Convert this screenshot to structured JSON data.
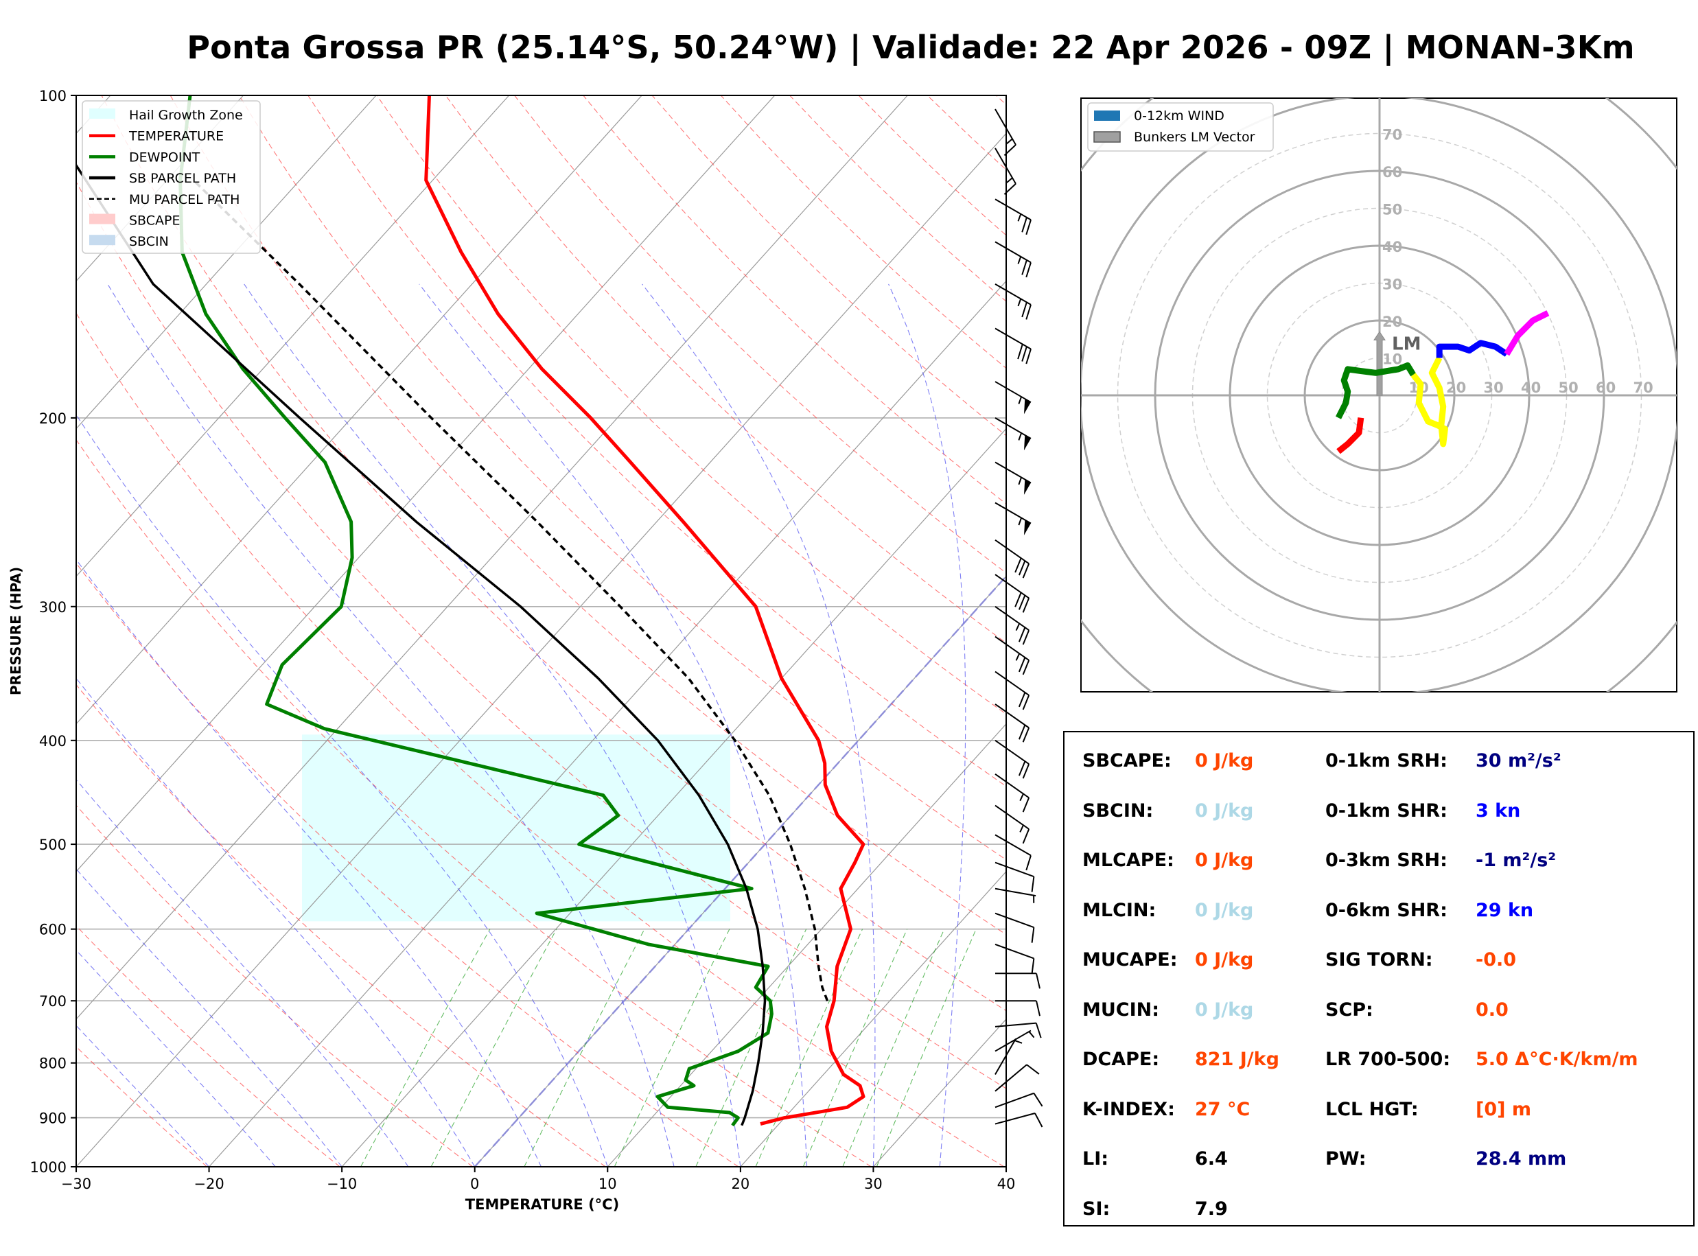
{
  "title": "Ponta Grossa PR (25.14°S, 50.24°W) | Validade: 22 Apr 2026 - 09Z | MONAN-3Km",
  "chart_data": [
    {
      "type": "skew-t",
      "xlabel": "TEMPERATURE (°C)",
      "ylabel": "PRESSURE (HPA)",
      "xlim": [
        -30,
        40
      ],
      "ylim": [
        1000,
        100
      ],
      "log_scale_y": true,
      "x_ticks": [
        "−30",
        "−20",
        "−10",
        "0",
        "10",
        "20",
        "30",
        "40"
      ],
      "y_ticks": [
        "100",
        "200",
        "300",
        "400",
        "500",
        "600",
        "700",
        "800",
        "900",
        "1000"
      ],
      "grid": true,
      "legend_position": "top-left",
      "legend": [
        {
          "label": "Hail Growth Zone",
          "color": "#e0ffff",
          "kind": "patch"
        },
        {
          "label": "TEMPERATURE",
          "color": "#ff0000",
          "kind": "line"
        },
        {
          "label": "DEWPOINT",
          "color": "#008000",
          "kind": "line"
        },
        {
          "label": "SB PARCEL PATH",
          "color": "#000000",
          "kind": "line"
        },
        {
          "label": "MU PARCEL PATH",
          "color": "#000000",
          "kind": "dashed"
        },
        {
          "label": "SBCAPE",
          "color": "#ffcccc",
          "kind": "patch"
        },
        {
          "label": "SBCIN",
          "color": "#c6dbef",
          "kind": "patch"
        }
      ],
      "hail_growth_zone_hpa": [
        590,
        395
      ],
      "series": [
        {
          "name": "TEMPERATURE",
          "color": "#ff0000",
          "points": [
            [
              912,
              18.6
            ],
            [
              900,
              20.0
            ],
            [
              880,
              24.0
            ],
            [
              860,
              24.5
            ],
            [
              840,
              23.5
            ],
            [
              820,
              21.5
            ],
            [
              780,
              19.0
            ],
            [
              740,
              17.0
            ],
            [
              700,
              15.8
            ],
            [
              650,
              13.7
            ],
            [
              600,
              12.2
            ],
            [
              550,
              8.7
            ],
            [
              520,
              8.0
            ],
            [
              500,
              7.4
            ],
            [
              470,
              3.5
            ],
            [
              440,
              0.5
            ],
            [
              420,
              -1.0
            ],
            [
              400,
              -3.0
            ],
            [
              350,
              -10.0
            ],
            [
              300,
              -16.8
            ],
            [
              250,
              -28.0
            ],
            [
              220,
              -36.0
            ],
            [
              200,
              -42.0
            ],
            [
              180,
              -49.0
            ],
            [
              160,
              -56.0
            ],
            [
              140,
              -63.0
            ],
            [
              120,
              -70.5
            ],
            [
              100,
              -76.0
            ]
          ]
        },
        {
          "name": "DEWPOINT",
          "color": "#008000",
          "points": [
            [
              915,
              16.6
            ],
            [
              900,
              16.5
            ],
            [
              890,
              15.5
            ],
            [
              880,
              10.5
            ],
            [
              860,
              9.0
            ],
            [
              840,
              11.0
            ],
            [
              830,
              10.0
            ],
            [
              810,
              9.5
            ],
            [
              780,
              12.0
            ],
            [
              750,
              13.0
            ],
            [
              720,
              12.0
            ],
            [
              700,
              11.0
            ],
            [
              680,
              9.0
            ],
            [
              650,
              8.5
            ],
            [
              620,
              -2.0
            ],
            [
              580,
              -12.5
            ],
            [
              550,
              2.0
            ],
            [
              500,
              -14.0
            ],
            [
              470,
              -13.0
            ],
            [
              450,
              -15.5
            ],
            [
              390,
              -41.0
            ],
            [
              370,
              -47.0
            ],
            [
              340,
              -48.5
            ],
            [
              300,
              -48.0
            ],
            [
              270,
              -50.5
            ],
            [
              250,
              -53.0
            ],
            [
              220,
              -59.0
            ],
            [
              200,
              -65.0
            ],
            [
              180,
              -71.5
            ],
            [
              160,
              -78.0
            ],
            [
              140,
              -84.0
            ],
            [
              120,
              -89.0
            ],
            [
              100,
              -94.0
            ]
          ]
        },
        {
          "name": "SB PARCEL PATH",
          "color": "#000000",
          "dash": false,
          "points": [
            [
              915,
              17.3
            ],
            [
              900,
              17.0
            ],
            [
              850,
              15.8
            ],
            [
              800,
              14.3
            ],
            [
              750,
              12.6
            ],
            [
              700,
              10.6
            ],
            [
              650,
              8.1
            ],
            [
              600,
              5.2
            ],
            [
              550,
              1.6
            ],
            [
              500,
              -2.8
            ],
            [
              450,
              -8.3
            ],
            [
              400,
              -15.1
            ],
            [
              350,
              -23.8
            ],
            [
              300,
              -34.5
            ],
            [
              250,
              -48.1
            ],
            [
              200,
              -63.9
            ],
            [
              150,
              -84.0
            ],
            [
              100,
              -106.0
            ]
          ]
        },
        {
          "name": "MU PARCEL PATH",
          "color": "#000000",
          "dash": true,
          "points": [
            [
              700,
              15.3
            ],
            [
              680,
              14.0
            ],
            [
              650,
              12.3
            ],
            [
              600,
              9.5
            ],
            [
              550,
              6.0
            ],
            [
              500,
              1.9
            ],
            [
              450,
              -3.0
            ],
            [
              400,
              -9.3
            ],
            [
              350,
              -17.0
            ],
            [
              300,
              -27.0
            ],
            [
              250,
              -39.0
            ],
            [
              200,
              -54.0
            ],
            [
              150,
              -73.0
            ],
            [
              120,
              -88.0
            ]
          ]
        }
      ],
      "wind_barbs": [
        {
          "p": 912,
          "dir": 75,
          "spd": 10
        },
        {
          "p": 880,
          "dir": 70,
          "spd": 10
        },
        {
          "p": 850,
          "dir": 50,
          "spd": 10
        },
        {
          "p": 820,
          "dir": 30,
          "spd": 5
        },
        {
          "p": 780,
          "dir": 60,
          "spd": 5
        },
        {
          "p": 740,
          "dir": 85,
          "spd": 10
        },
        {
          "p": 700,
          "dir": 90,
          "spd": 10
        },
        {
          "p": 660,
          "dir": 90,
          "spd": 10
        },
        {
          "p": 620,
          "dir": 110,
          "spd": 10
        },
        {
          "p": 580,
          "dir": 110,
          "spd": 10
        },
        {
          "p": 550,
          "dir": 100,
          "spd": 5
        },
        {
          "p": 520,
          "dir": 110,
          "spd": 10
        },
        {
          "p": 490,
          "dir": 120,
          "spd": 10
        },
        {
          "p": 460,
          "dir": 125,
          "spd": 15
        },
        {
          "p": 430,
          "dir": 125,
          "spd": 15
        },
        {
          "p": 400,
          "dir": 125,
          "spd": 20
        },
        {
          "p": 370,
          "dir": 125,
          "spd": 20
        },
        {
          "p": 345,
          "dir": 125,
          "spd": 20
        },
        {
          "p": 320,
          "dir": 125,
          "spd": 25
        },
        {
          "p": 300,
          "dir": 125,
          "spd": 25
        },
        {
          "p": 280,
          "dir": 125,
          "spd": 30
        },
        {
          "p": 260,
          "dir": 125,
          "spd": 30
        },
        {
          "p": 240,
          "dir": 120,
          "spd": 55
        },
        {
          "p": 220,
          "dir": 120,
          "spd": 55
        },
        {
          "p": 200,
          "dir": 120,
          "spd": 55
        },
        {
          "p": 185,
          "dir": 120,
          "spd": 55
        },
        {
          "p": 165,
          "dir": 120,
          "spd": 30
        },
        {
          "p": 150,
          "dir": 120,
          "spd": 25
        },
        {
          "p": 137,
          "dir": 120,
          "spd": 25
        },
        {
          "p": 125,
          "dir": 120,
          "spd": 25
        },
        {
          "p": 112,
          "dir": 150,
          "spd": 15
        },
        {
          "p": 103,
          "dir": 150,
          "spd": 15
        }
      ]
    },
    {
      "type": "hodograph",
      "ring_labels": [
        "10",
        "20",
        "30",
        "40",
        "50",
        "60",
        "70"
      ],
      "legend_position": "top-left",
      "legend": [
        {
          "label": "0-12km WIND",
          "color": "#1f77b4"
        },
        {
          "label": "Bunkers LM Vector",
          "color": "#a0a0a0"
        }
      ],
      "bunkers_label": "LM",
      "bunkers_lm": [
        0,
        17
      ],
      "segments": [
        {
          "color": "#ff0000",
          "points": [
            [
              -5,
              -6
            ],
            [
              -5.5,
              -10
            ],
            [
              -8.5,
              -13
            ],
            [
              -11,
              -15
            ]
          ]
        },
        {
          "color": "#008000",
          "points": [
            [
              -11,
              -6
            ],
            [
              -9,
              -2
            ],
            [
              -8.5,
              1
            ],
            [
              -9.5,
              4
            ],
            [
              -8.5,
              7
            ],
            [
              -5,
              6.5
            ],
            [
              -1,
              6
            ],
            [
              5,
              7
            ],
            [
              7.5,
              8
            ],
            [
              9,
              5.5
            ]
          ]
        },
        {
          "color": "#ffff00",
          "points": [
            [
              9,
              5.5
            ],
            [
              11,
              3
            ],
            [
              10.5,
              -2
            ],
            [
              13,
              -7
            ],
            [
              15.5,
              -8
            ],
            [
              17.5,
              -9
            ],
            [
              17,
              -13
            ],
            [
              16.5,
              -8
            ],
            [
              17,
              -3
            ],
            [
              16,
              2
            ],
            [
              14,
              6
            ],
            [
              16,
              10
            ]
          ]
        },
        {
          "color": "#0000ff",
          "points": [
            [
              16,
              10
            ],
            [
              16,
              13
            ],
            [
              21,
              13
            ],
            [
              24,
              12
            ],
            [
              27,
              14
            ],
            [
              31,
              13
            ],
            [
              34,
              11
            ]
          ]
        },
        {
          "color": "#ff00ff",
          "points": [
            [
              34,
              11
            ],
            [
              37,
              16
            ],
            [
              41,
              20
            ],
            [
              45,
              22
            ]
          ]
        }
      ]
    }
  ],
  "indices": {
    "left": [
      {
        "label": "SBCAPE:",
        "value": "0 J/kg",
        "color": "#ff4500"
      },
      {
        "label": "SBCIN:",
        "value": "0 J/kg",
        "color": "#add8e6"
      },
      {
        "label": "MLCAPE:",
        "value": "0 J/kg",
        "color": "#ff4500"
      },
      {
        "label": "MLCIN:",
        "value": "0 J/kg",
        "color": "#add8e6"
      },
      {
        "label": "MUCAPE:",
        "value": "0 J/kg",
        "color": "#ff4500"
      },
      {
        "label": "MUCIN:",
        "value": "0 J/kg",
        "color": "#add8e6"
      },
      {
        "label": "DCAPE:",
        "value": "821 J/kg",
        "color": "#ff4500"
      },
      {
        "label": "K-INDEX:",
        "value": "27 °C",
        "color": "#ff4500"
      },
      {
        "label": "LI:",
        "value": "6.4",
        "color": "#000000"
      },
      {
        "label": "SI:",
        "value": "7.9",
        "color": "#000000"
      }
    ],
    "right": [
      {
        "label": "0-1km SRH:",
        "value": "30 m²/s²",
        "color": "#000080"
      },
      {
        "label": "0-1km SHR:",
        "value": "3 kn",
        "color": "#0000ff"
      },
      {
        "label": "0-3km SRH:",
        "value": "-1 m²/s²",
        "color": "#000080"
      },
      {
        "label": "0-6km SHR:",
        "value": "29 kn",
        "color": "#0000ff"
      },
      {
        "label": "SIG TORN:",
        "value": "-0.0",
        "color": "#ff4500"
      },
      {
        "label": "SCP:",
        "value": "0.0",
        "color": "#ff4500"
      },
      {
        "label": "LR 700-500:",
        "value": "5.0 Δ°C·K/km/m",
        "color": "#ff4500"
      },
      {
        "label": "LCL HGT:",
        "value": "[0] m",
        "color": "#ff4500"
      },
      {
        "label": "PW:",
        "value": "28.4 mm",
        "color": "#000080"
      }
    ]
  }
}
